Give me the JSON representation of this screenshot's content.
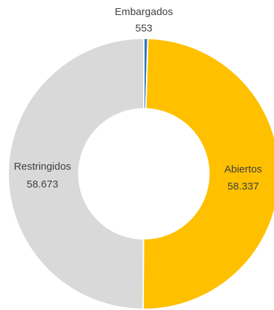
{
  "chart_data": {
    "type": "donut",
    "categories": [
      "Embargados",
      "Abiertos",
      "Restringidos"
    ],
    "values": [
      553,
      58337,
      58673
    ],
    "value_labels": [
      "553",
      "58.337",
      "58.673"
    ],
    "colors": [
      "#2E75B6",
      "#FFC000",
      "#D9D9D9"
    ]
  }
}
